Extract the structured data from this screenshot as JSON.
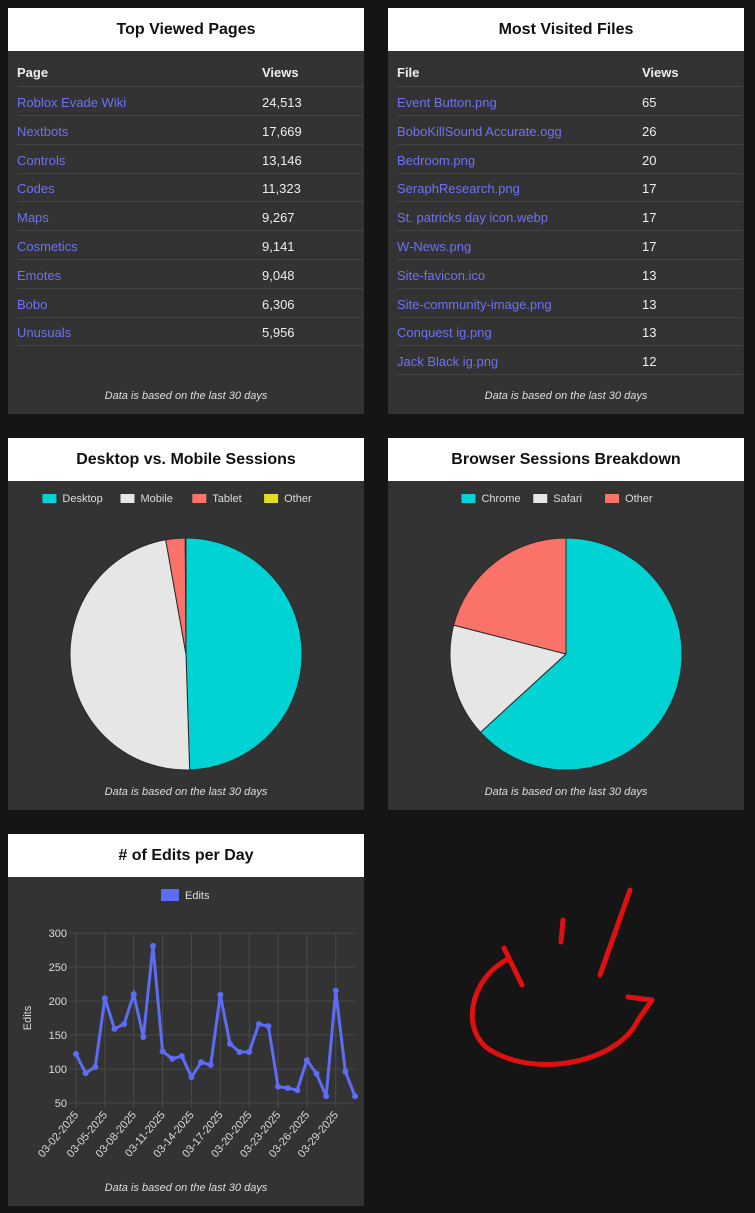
{
  "top_pages": {
    "title": "Top Viewed Pages",
    "columns": [
      "Page",
      "Views"
    ],
    "rows": [
      [
        "Roblox Evade Wiki",
        "24,513"
      ],
      [
        "Nextbots",
        "17,669"
      ],
      [
        "Controls",
        "13,146"
      ],
      [
        "Codes",
        "11,323"
      ],
      [
        "Maps",
        "9,267"
      ],
      [
        "Cosmetics",
        "9,141"
      ],
      [
        "Emotes",
        "9,048"
      ],
      [
        "Bobo",
        "6,306"
      ],
      [
        "Unusuals",
        "5,956"
      ]
    ],
    "note": "Data is based on the last 30 days"
  },
  "top_files": {
    "title": "Most Visited Files",
    "columns": [
      "File",
      "Views"
    ],
    "rows": [
      [
        "Event Button.png",
        "65"
      ],
      [
        "BoboKillSound Accurate.ogg",
        "26"
      ],
      [
        "Bedroom.png",
        "20"
      ],
      [
        "SeraphResearch.png",
        "17"
      ],
      [
        "St. patricks day icon.webp",
        "17"
      ],
      [
        "W-News.png",
        "17"
      ],
      [
        "Site-favicon.ico",
        "13"
      ],
      [
        "Site-community-image.png",
        "13"
      ],
      [
        "Conquest ig.png",
        "13"
      ],
      [
        "Jack Black ig.png",
        "12"
      ]
    ],
    "note": "Data is based on the last 30 days"
  },
  "chart_data": [
    {
      "type": "pie",
      "title": "Desktop vs. Mobile Sessions",
      "categories": [
        "Desktop",
        "Mobile",
        "Tablet",
        "Other"
      ],
      "values": [
        49.5,
        47.7,
        2.7,
        0.1
      ],
      "colors": [
        "#00d3d3",
        "#e6e6e6",
        "#fa7268",
        "#e0e020"
      ],
      "legend": "top",
      "note": "Data is based on the last 30 days"
    },
    {
      "type": "pie",
      "title": "Browser Sessions Breakdown",
      "categories": [
        "Chrome",
        "Safari",
        "Other"
      ],
      "values": [
        63.2,
        15.8,
        21.0
      ],
      "colors": [
        "#00d3d3",
        "#e6e6e6",
        "#fa7268"
      ],
      "legend": "top",
      "note": "Data is based on the last 30 days"
    },
    {
      "type": "line",
      "title": "# of Edits per Day",
      "categories": [
        "03-02-2025",
        null,
        null,
        "03-05-2025",
        null,
        null,
        "03-08-2025",
        null,
        null,
        "03-11-2025",
        null,
        null,
        "03-14-2025",
        null,
        null,
        "03-17-2025",
        null,
        null,
        "03-20-2025",
        null,
        null,
        "03-23-2025",
        null,
        null,
        "03-26-2025",
        null,
        null,
        "03-29-2025",
        null,
        null
      ],
      "series": [
        {
          "name": "Edits",
          "color": "#5d6cf5",
          "values": [
            122,
            94,
            103,
            204,
            159,
            166,
            210,
            147,
            281,
            126,
            115,
            119,
            88,
            110,
            106,
            209,
            137,
            125,
            125,
            166,
            163,
            74,
            72,
            69,
            113,
            93,
            60,
            215,
            96,
            60
          ]
        }
      ],
      "ylabel": "Edits",
      "ylim": [
        50,
        300
      ],
      "yticks": [
        50,
        100,
        150,
        200,
        250,
        300
      ],
      "grid": true,
      "legend": "top",
      "note": "Data is based on the last 30 days"
    }
  ]
}
